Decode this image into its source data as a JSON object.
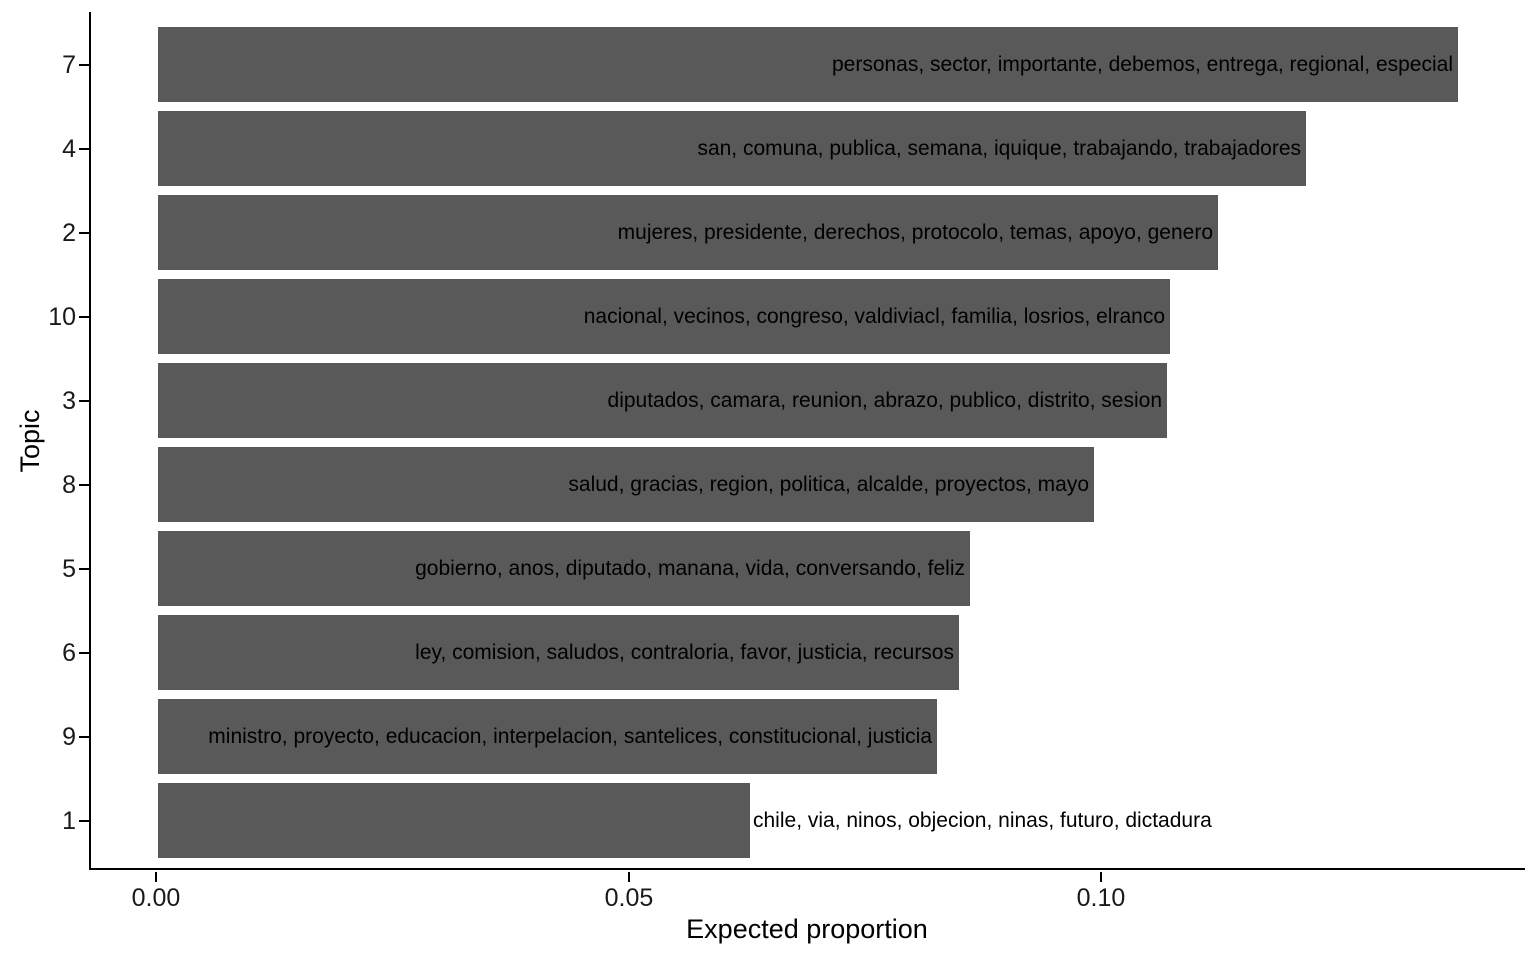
{
  "chart_data": {
    "type": "bar",
    "orientation": "horizontal",
    "title": "",
    "xlabel": "Expected proportion",
    "ylabel": "Topic",
    "bar_color": "#595959",
    "axis_color": "#000000",
    "grid": "off",
    "legend": "none",
    "xlim": [
      0,
      0.145
    ],
    "x_ticks": [
      {
        "label": "0.00",
        "value": 0.0
      },
      {
        "label": "0.05",
        "value": 0.05
      },
      {
        "label": "0.10",
        "value": 0.1
      }
    ],
    "bars": [
      {
        "topic": "7",
        "value": 0.1376,
        "label": "personas, sector, importante, debemos, entrega, regional, especial",
        "label_position": "inside-end"
      },
      {
        "topic": "4",
        "value": 0.1215,
        "label": "san, comuna, publica, semana, iquique, trabajando, trabajadores",
        "label_position": "inside-end"
      },
      {
        "topic": "2",
        "value": 0.1122,
        "label": "mujeres, presidente, derechos, protocolo, temas, apoyo, genero",
        "label_position": "inside-end"
      },
      {
        "topic": "10",
        "value": 0.1071,
        "label": "nacional, vecinos, congreso, valdiviacl, familia, losrios, elranco",
        "label_position": "inside-end"
      },
      {
        "topic": "3",
        "value": 0.1068,
        "label": "diputados, camara, reunion, abrazo, publico, distrito, sesion",
        "label_position": "inside-end"
      },
      {
        "topic": "8",
        "value": 0.0991,
        "label": "salud, gracias, region, politica, alcalde, proyectos, mayo",
        "label_position": "inside-end"
      },
      {
        "topic": "5",
        "value": 0.0859,
        "label": "gobierno, anos, diputado, manana, vida, conversando, feliz",
        "label_position": "inside-end"
      },
      {
        "topic": "6",
        "value": 0.0848,
        "label": "ley, comision, saludos, contraloria, favor, justicia, recursos",
        "label_position": "inside-end"
      },
      {
        "topic": "9",
        "value": 0.0824,
        "label": "ministro, proyecto, educacion, interpelacion, santelices, constitucional, justicia",
        "label_position": "inside-end"
      },
      {
        "topic": "1",
        "value": 0.0626,
        "label": "chile, via, ninos, objecion, ninas, futuro, dictadura",
        "label_position": "outside-end"
      }
    ]
  }
}
